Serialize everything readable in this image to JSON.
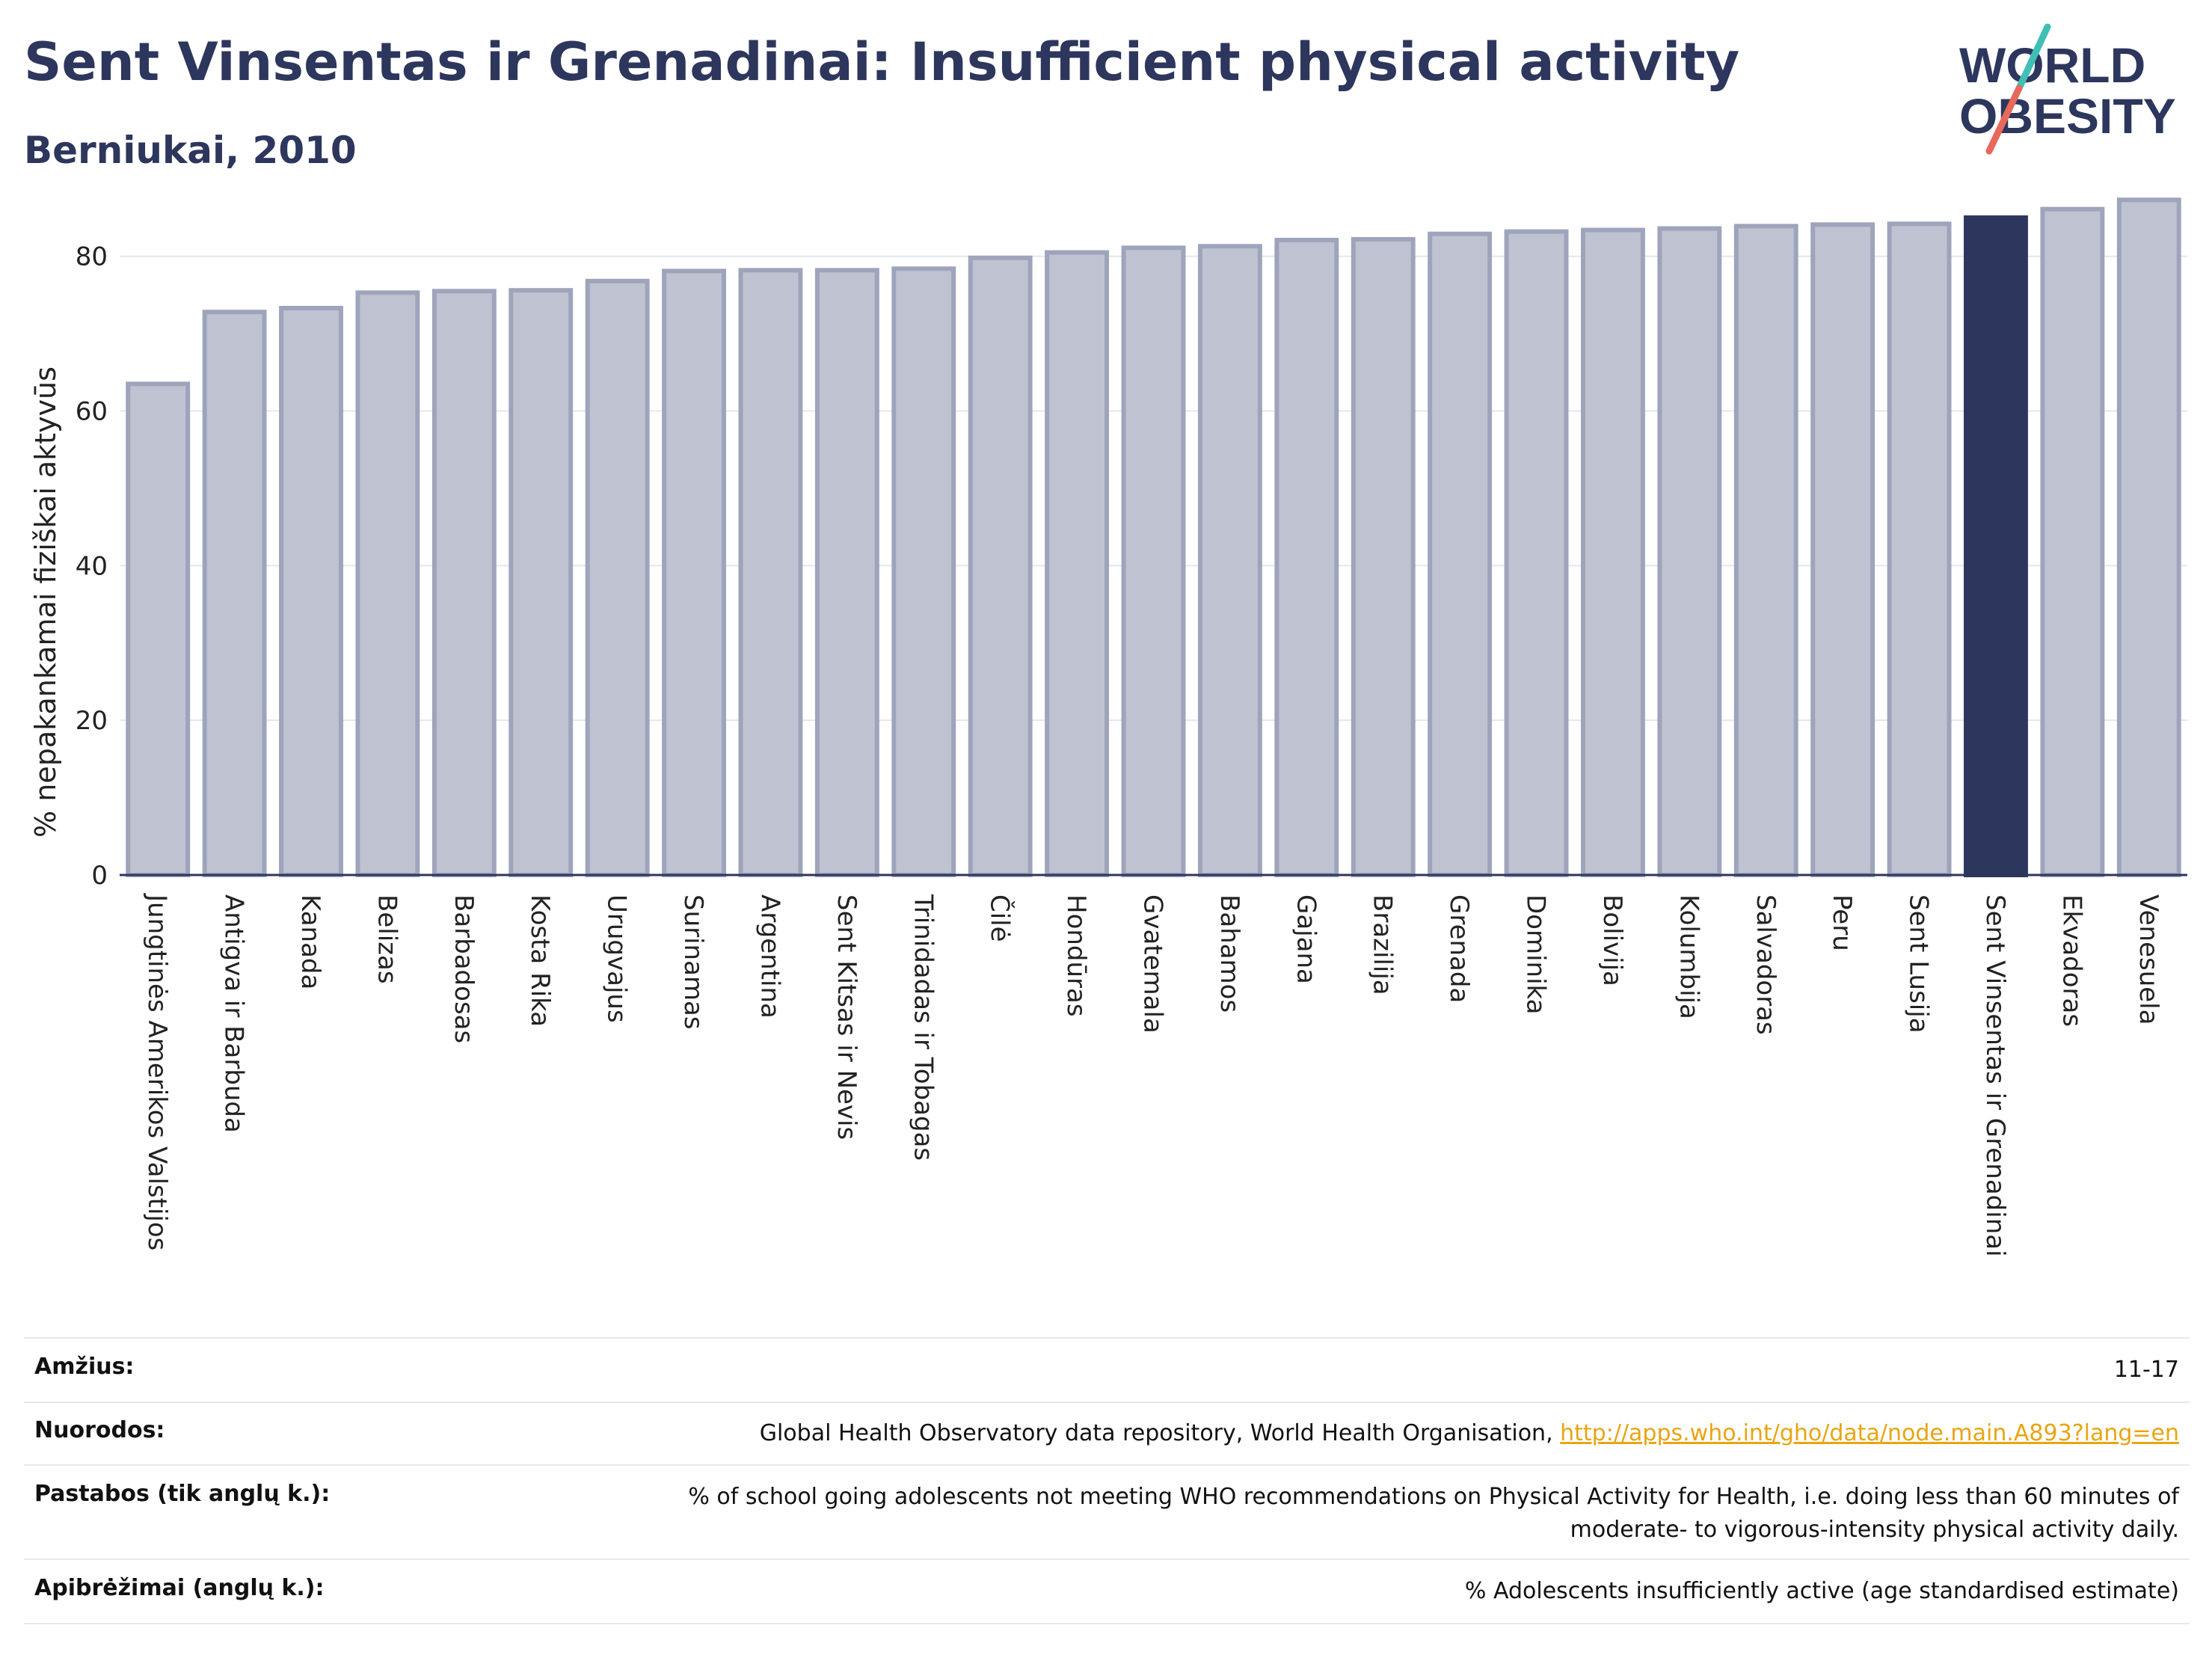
{
  "header": {
    "title": "Sent Vinsentas ir Grenadinai: Insufficient physical activity",
    "subtitle": "Berniukai, 2010",
    "logo_line1": "WORLD",
    "logo_line2": "OBESITY"
  },
  "colors": {
    "bar": "#bfc3d1",
    "bar_border": "#9ea4bb",
    "highlight": "#2d365c",
    "title": "#2d365c",
    "link": "#e8a512",
    "logo_teal": "#3fbfb5",
    "logo_red": "#e8685a"
  },
  "chart_data": {
    "type": "bar",
    "title": "Sent Vinsentas ir Grenadinai: Insufficient physical activity",
    "subtitle": "Berniukai, 2010",
    "xlabel": "",
    "ylabel": "% nepakankamai fiziškai aktyvūs",
    "ylim": [
      0,
      88
    ],
    "yticks": [
      0,
      20,
      40,
      60,
      80
    ],
    "grid": true,
    "highlight": "Sent Vinsentas ir Grenadinai",
    "categories": [
      "Jungtinės Amerikos Valstijos",
      "Antigva ir Barbuda",
      "Kanada",
      "Belizas",
      "Barbadosas",
      "Kosta Rika",
      "Urugvajus",
      "Surinamas",
      "Argentina",
      "Sent Kitsas ir Nevis",
      "Trinidadas ir Tobagas",
      "Čilė",
      "Hondūras",
      "Gvatemala",
      "Bahamos",
      "Gajana",
      "Brazilija",
      "Grenada",
      "Dominika",
      "Bolivija",
      "Kolumbija",
      "Salvadoras",
      "Peru",
      "Sent Lusija",
      "Sent Vinsentas ir Grenadinai",
      "Ekvadoras",
      "Venesuela"
    ],
    "values": [
      63.5,
      72.8,
      73.3,
      75.3,
      75.5,
      75.6,
      76.8,
      78.1,
      78.2,
      78.2,
      78.4,
      79.8,
      80.5,
      81.1,
      81.3,
      82.1,
      82.2,
      82.9,
      83.2,
      83.4,
      83.6,
      83.9,
      84.1,
      84.2,
      85.0,
      86.1,
      87.3
    ]
  },
  "info": {
    "rows": [
      {
        "label": "Amžius:",
        "value": "11-17"
      },
      {
        "label": "Nuorodos:",
        "value": "Global Health Observatory data repository, World Health Organisation, ",
        "link": "http://apps.who.int/gho/data/node.main.A893?lang=en"
      },
      {
        "label": "Pastabos (tik anglų k.):",
        "value": "% of school going adolescents not meeting WHO recommendations on Physical Activity for Health, i.e. doing less than 60 minutes of",
        "value2": "moderate- to vigorous-intensity physical activity daily."
      },
      {
        "label": "Apibrėžimai (anglų k.):",
        "value": "% Adolescents insufficiently active (age standardised estimate)"
      }
    ]
  }
}
